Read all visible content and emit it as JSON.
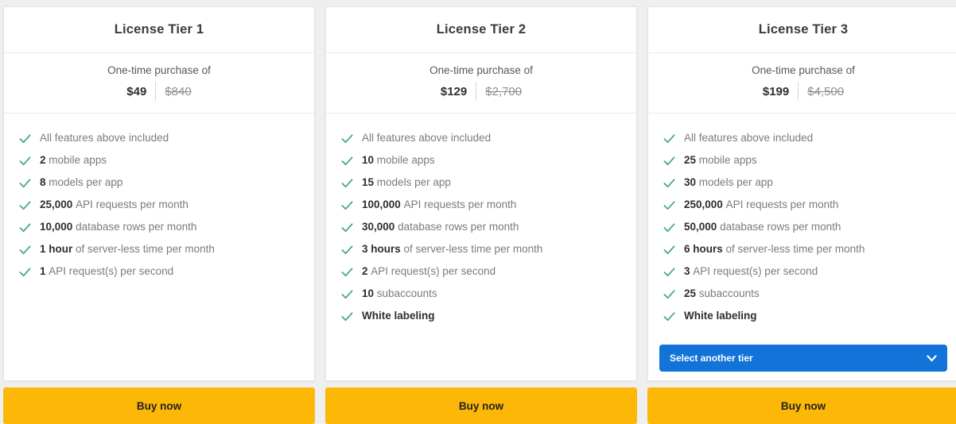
{
  "colors": {
    "page_background": "#efefef",
    "check_green": "#44a77c",
    "buy_yellow": "#fcb707",
    "select_blue": "#1273d8"
  },
  "cards": [
    {
      "title": "License Tier 1",
      "price_label": "One-time purchase of",
      "price": "$49",
      "original_price": "$840",
      "features": [
        {
          "bold": "",
          "text": "All features above included"
        },
        {
          "bold": "2",
          "text": " mobile apps"
        },
        {
          "bold": "8",
          "text": " models per app"
        },
        {
          "bold": "25,000",
          "text": " API requests per month"
        },
        {
          "bold": "10,000",
          "text": " database rows per month"
        },
        {
          "bold": "1 hour",
          "text": " of server-less time per month"
        },
        {
          "bold": "1",
          "text": " API request(s) per second"
        }
      ],
      "select_label": null,
      "buy_label": "Buy now"
    },
    {
      "title": "License Tier 2",
      "price_label": "One-time purchase of",
      "price": "$129",
      "original_price": "$2,700",
      "features": [
        {
          "bold": "",
          "text": "All features above included"
        },
        {
          "bold": "10",
          "text": " mobile apps"
        },
        {
          "bold": "15",
          "text": " models per app"
        },
        {
          "bold": "100,000",
          "text": " API requests per month"
        },
        {
          "bold": "30,000",
          "text": " database rows per month"
        },
        {
          "bold": "3 hours",
          "text": " of server-less time per month"
        },
        {
          "bold": "2",
          "text": " API request(s) per second"
        },
        {
          "bold": "10",
          "text": " subaccounts"
        },
        {
          "bold": "White labeling",
          "text": ""
        }
      ],
      "select_label": null,
      "buy_label": "Buy now"
    },
    {
      "title": "License Tier 3",
      "price_label": "One-time purchase of",
      "price": "$199",
      "original_price": "$4,500",
      "features": [
        {
          "bold": "",
          "text": "All features above included"
        },
        {
          "bold": "25",
          "text": " mobile apps"
        },
        {
          "bold": "30",
          "text": " models per app"
        },
        {
          "bold": "250,000",
          "text": " API requests per month"
        },
        {
          "bold": "50,000",
          "text": " database rows per month"
        },
        {
          "bold": "6 hours",
          "text": " of server-less time per month"
        },
        {
          "bold": "3",
          "text": " API request(s) per second"
        },
        {
          "bold": "25",
          "text": " subaccounts"
        },
        {
          "bold": "White labeling",
          "text": ""
        }
      ],
      "select_label": "Select another tier",
      "buy_label": "Buy now"
    }
  ]
}
